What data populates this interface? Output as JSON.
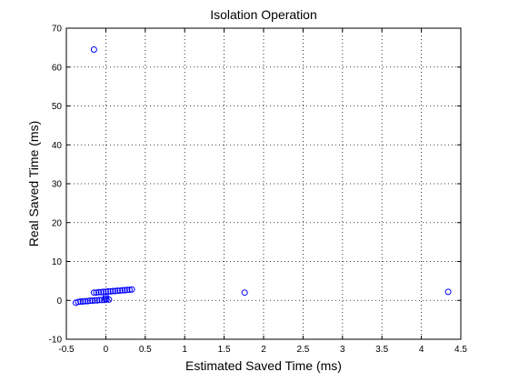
{
  "chart_data": {
    "type": "scatter",
    "title": "Isolation Operation",
    "xlabel": "Estimated Saved Time (ms)",
    "ylabel": "Real Saved Time (ms)",
    "xlim": [
      -0.5,
      4.5
    ],
    "ylim": [
      -10,
      70
    ],
    "x_ticks": [
      -0.5,
      0,
      0.5,
      1,
      1.5,
      2,
      2.5,
      3,
      3.5,
      4,
      4.5
    ],
    "x_tick_labels": [
      "-0.5",
      "0",
      "0.5",
      "1",
      "1.5",
      "2",
      "2.5",
      "3",
      "3.5",
      "4",
      "4.5"
    ],
    "y_ticks": [
      -10,
      0,
      10,
      20,
      30,
      40,
      50,
      60,
      70
    ],
    "y_tick_labels": [
      "-10",
      "0",
      "10",
      "20",
      "30",
      "40",
      "50",
      "60",
      "70"
    ],
    "grid": true,
    "grid_style": "dotted",
    "marker": "circle-open",
    "marker_color": "#0000ff",
    "points": [
      {
        "x": -0.15,
        "y": 64.5
      },
      {
        "x": 1.76,
        "y": 2.0
      },
      {
        "x": 4.34,
        "y": 2.2
      },
      {
        "x": -0.38,
        "y": -0.6
      },
      {
        "x": -0.35,
        "y": -0.4
      },
      {
        "x": -0.32,
        "y": -0.3
      },
      {
        "x": -0.29,
        "y": -0.3
      },
      {
        "x": -0.26,
        "y": -0.2
      },
      {
        "x": -0.23,
        "y": -0.2
      },
      {
        "x": -0.2,
        "y": -0.1
      },
      {
        "x": -0.17,
        "y": -0.1
      },
      {
        "x": -0.14,
        "y": 0.0
      },
      {
        "x": -0.11,
        "y": 0.0
      },
      {
        "x": -0.08,
        "y": 0.1
      },
      {
        "x": -0.05,
        "y": 0.1
      },
      {
        "x": -0.02,
        "y": 0.1
      },
      {
        "x": 0.01,
        "y": 0.2
      },
      {
        "x": 0.04,
        "y": 0.2
      },
      {
        "x": -0.15,
        "y": 2.0
      },
      {
        "x": -0.12,
        "y": 2.0
      },
      {
        "x": -0.09,
        "y": 2.1
      },
      {
        "x": -0.06,
        "y": 2.1
      },
      {
        "x": -0.03,
        "y": 2.2
      },
      {
        "x": 0.0,
        "y": 2.2
      },
      {
        "x": 0.03,
        "y": 2.3
      },
      {
        "x": 0.06,
        "y": 2.3
      },
      {
        "x": 0.09,
        "y": 2.4
      },
      {
        "x": 0.12,
        "y": 2.4
      },
      {
        "x": 0.15,
        "y": 2.5
      },
      {
        "x": 0.18,
        "y": 2.5
      },
      {
        "x": 0.21,
        "y": 2.6
      },
      {
        "x": 0.24,
        "y": 2.6
      },
      {
        "x": 0.27,
        "y": 2.7
      },
      {
        "x": 0.3,
        "y": 2.7
      },
      {
        "x": 0.33,
        "y": 2.8
      },
      {
        "x": 0.0,
        "y": 1.0
      },
      {
        "x": 0.0,
        "y": 0.5
      }
    ]
  }
}
